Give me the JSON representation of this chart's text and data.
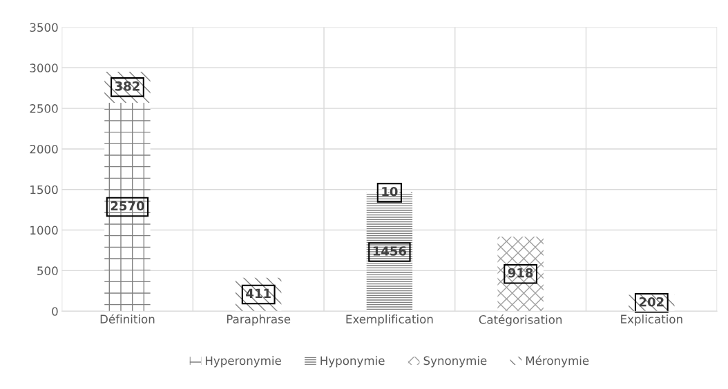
{
  "chart_data": {
    "type": "bar",
    "stacked": true,
    "categories": [
      "Définition",
      "Paraphrase",
      "Exemplification",
      "Catégorisation",
      "Explication"
    ],
    "series": [
      {
        "name": "Hyperonymie",
        "color": "#808080",
        "values": [
          2570,
          null,
          null,
          null,
          null
        ]
      },
      {
        "name": "Hyponymie",
        "color": "#808080",
        "values": [
          null,
          null,
          1456,
          null,
          null
        ]
      },
      {
        "name": "Synonymie",
        "color": "#a0a0a0",
        "values": [
          null,
          null,
          null,
          918,
          null
        ]
      },
      {
        "name": "Méronymie",
        "color": "#808080",
        "values": [
          382,
          411,
          10,
          null,
          202
        ]
      }
    ],
    "ylim": [
      0,
      3500
    ],
    "yticks": [
      0,
      500,
      1000,
      1500,
      2000,
      2500,
      3000,
      3500
    ],
    "grid": true,
    "legend": "bottom",
    "data_labels": true
  }
}
